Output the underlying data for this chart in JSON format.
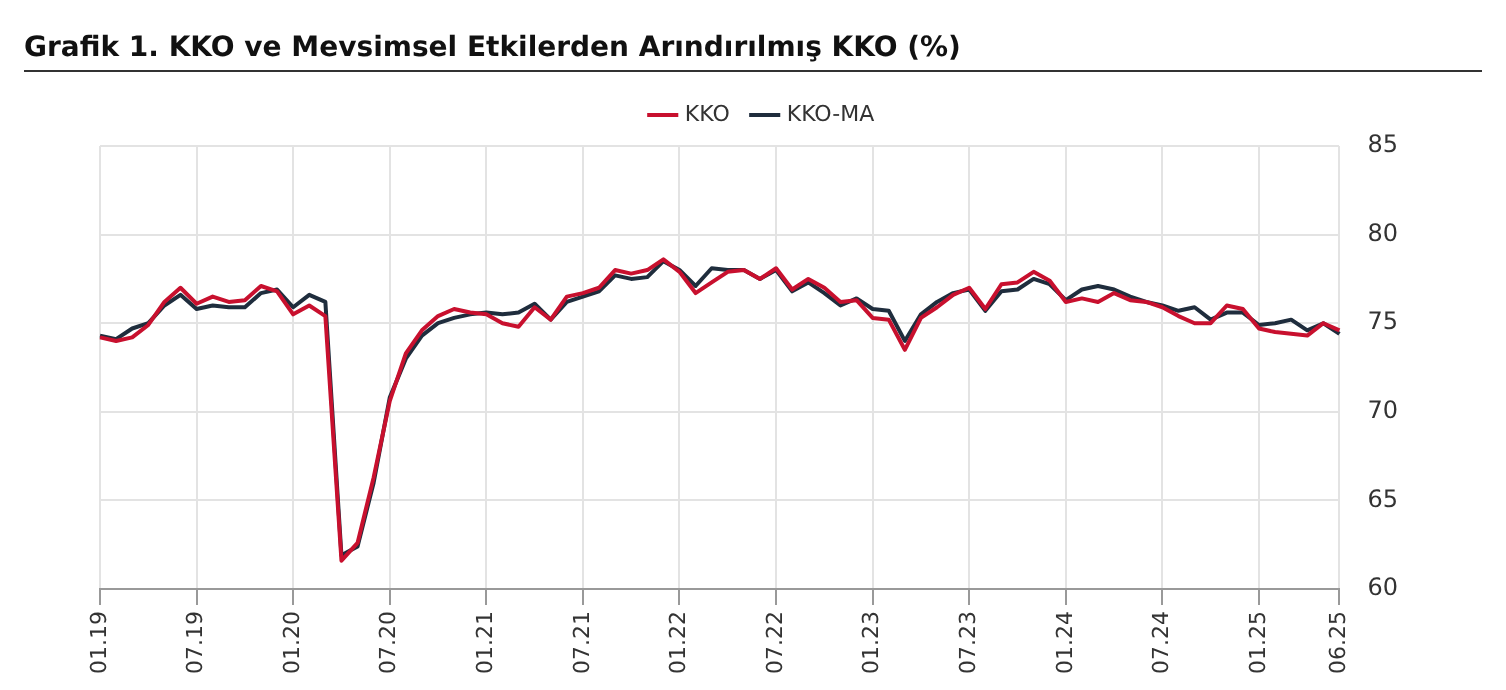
{
  "chart_data": {
    "type": "line",
    "title": "Grafik 1. KKO ve Mevsimsel Etkilerden Arındırılmış KKO (%)",
    "categories": [
      "01.19",
      null,
      null,
      null,
      null,
      null,
      "07.19",
      null,
      null,
      null,
      null,
      null,
      "01.20",
      null,
      null,
      null,
      null,
      null,
      "07.20",
      null,
      null,
      null,
      null,
      null,
      "01.21",
      null,
      null,
      null,
      null,
      null,
      "07.21",
      null,
      null,
      null,
      null,
      null,
      "01.22",
      null,
      null,
      null,
      null,
      null,
      "07.22",
      null,
      null,
      null,
      null,
      null,
      "01.23",
      null,
      null,
      null,
      null,
      null,
      "07.23",
      null,
      null,
      null,
      null,
      null,
      "01.24",
      null,
      null,
      null,
      null,
      null,
      "07.24",
      null,
      null,
      null,
      null,
      null,
      "01.25",
      null,
      null,
      null,
      null,
      "06.25"
    ],
    "series": [
      {
        "name": "KKO",
        "color": "#c8102e",
        "values": [
          74.2,
          74.0,
          74.2,
          74.9,
          76.2,
          77.0,
          76.1,
          76.5,
          76.2,
          76.3,
          77.1,
          76.8,
          75.5,
          76.0,
          75.4,
          61.6,
          62.6,
          66.3,
          70.6,
          73.3,
          74.6,
          75.4,
          75.8,
          75.6,
          75.5,
          75.0,
          74.8,
          75.9,
          75.2,
          76.5,
          76.7,
          77.0,
          78.0,
          77.8,
          78.0,
          78.6,
          77.9,
          76.7,
          77.3,
          77.9,
          78.0,
          77.5,
          78.1,
          76.9,
          77.5,
          77.0,
          76.2,
          76.3,
          75.3,
          75.2,
          73.5,
          75.3,
          75.9,
          76.6,
          77.0,
          75.8,
          77.2,
          77.3,
          77.9,
          77.4,
          76.2,
          76.4,
          76.2,
          76.7,
          76.3,
          76.2,
          75.9,
          75.4,
          75.0,
          75.0,
          76.0,
          75.8,
          74.7,
          74.5,
          74.4,
          74.3,
          75.0,
          74.6
        ]
      },
      {
        "name": "KKO-MA",
        "color": "#1f2d3d",
        "values": [
          74.3,
          74.1,
          74.7,
          75.0,
          76.0,
          76.6,
          75.8,
          76.0,
          75.9,
          75.9,
          76.7,
          76.9,
          75.9,
          76.6,
          76.2,
          61.9,
          62.4,
          66.0,
          70.8,
          73.0,
          74.3,
          75.0,
          75.3,
          75.5,
          75.6,
          75.5,
          75.6,
          76.1,
          75.2,
          76.2,
          76.5,
          76.8,
          77.7,
          77.5,
          77.6,
          78.5,
          78.0,
          77.1,
          78.1,
          78.0,
          78.0,
          77.5,
          78.0,
          76.8,
          77.3,
          76.7,
          76.0,
          76.4,
          75.8,
          75.7,
          74.0,
          75.5,
          76.2,
          76.7,
          76.9,
          75.7,
          76.8,
          76.9,
          77.5,
          77.2,
          76.3,
          76.9,
          77.1,
          76.9,
          76.5,
          76.2,
          76.0,
          75.7,
          75.9,
          75.2,
          75.6,
          75.6,
          74.9,
          75.0,
          75.2,
          74.6,
          75.0,
          74.4
        ]
      }
    ],
    "ylim": [
      60,
      85
    ],
    "yticks": [
      60,
      65,
      70,
      75,
      80,
      85
    ],
    "grid": true,
    "legend": "top",
    "marker": "none",
    "line_style": "solid"
  }
}
